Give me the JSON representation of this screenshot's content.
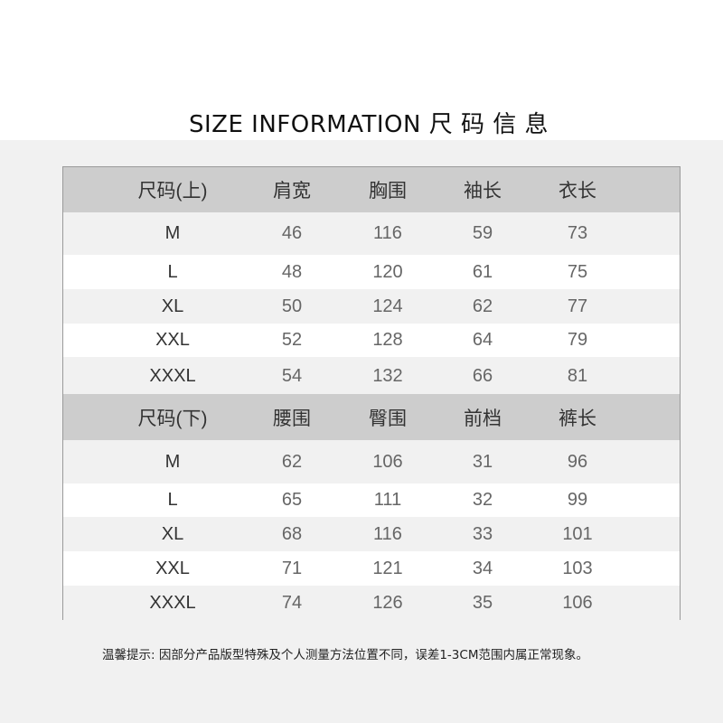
{
  "title": "SIZE INFORMATION 尺 码 信 息",
  "tables": [
    {
      "headers": [
        "尺码(上)",
        "肩宽",
        "胸围",
        "袖长",
        "衣长"
      ],
      "rows": [
        [
          "M",
          "46",
          "116",
          "59",
          "73"
        ],
        [
          "L",
          "48",
          "120",
          "61",
          "75"
        ],
        [
          "XL",
          "50",
          "124",
          "62",
          "77"
        ],
        [
          "XXL",
          "52",
          "128",
          "64",
          "79"
        ],
        [
          "XXXL",
          "54",
          "132",
          "66",
          "81"
        ]
      ]
    },
    {
      "headers": [
        "尺码(下)",
        "腰围",
        "臀围",
        "前档",
        "裤长"
      ],
      "rows": [
        [
          "M",
          "62",
          "106",
          "31",
          "96"
        ],
        [
          "L",
          "65",
          "111",
          "32",
          "99"
        ],
        [
          "XL",
          "68",
          "116",
          "33",
          "101"
        ],
        [
          "XXL",
          "71",
          "121",
          "34",
          "103"
        ],
        [
          "XXXL",
          "74",
          "126",
          "35",
          "106"
        ]
      ]
    }
  ],
  "note": "温馨提示: 因部分产品版型特殊及个人测量方法位置不同，误差1-3CM范围内属正常现象。",
  "colors": {
    "header_bg": "#cdcdcd",
    "page_bg": "#f1f1f1",
    "border": "#9a9a9a"
  }
}
